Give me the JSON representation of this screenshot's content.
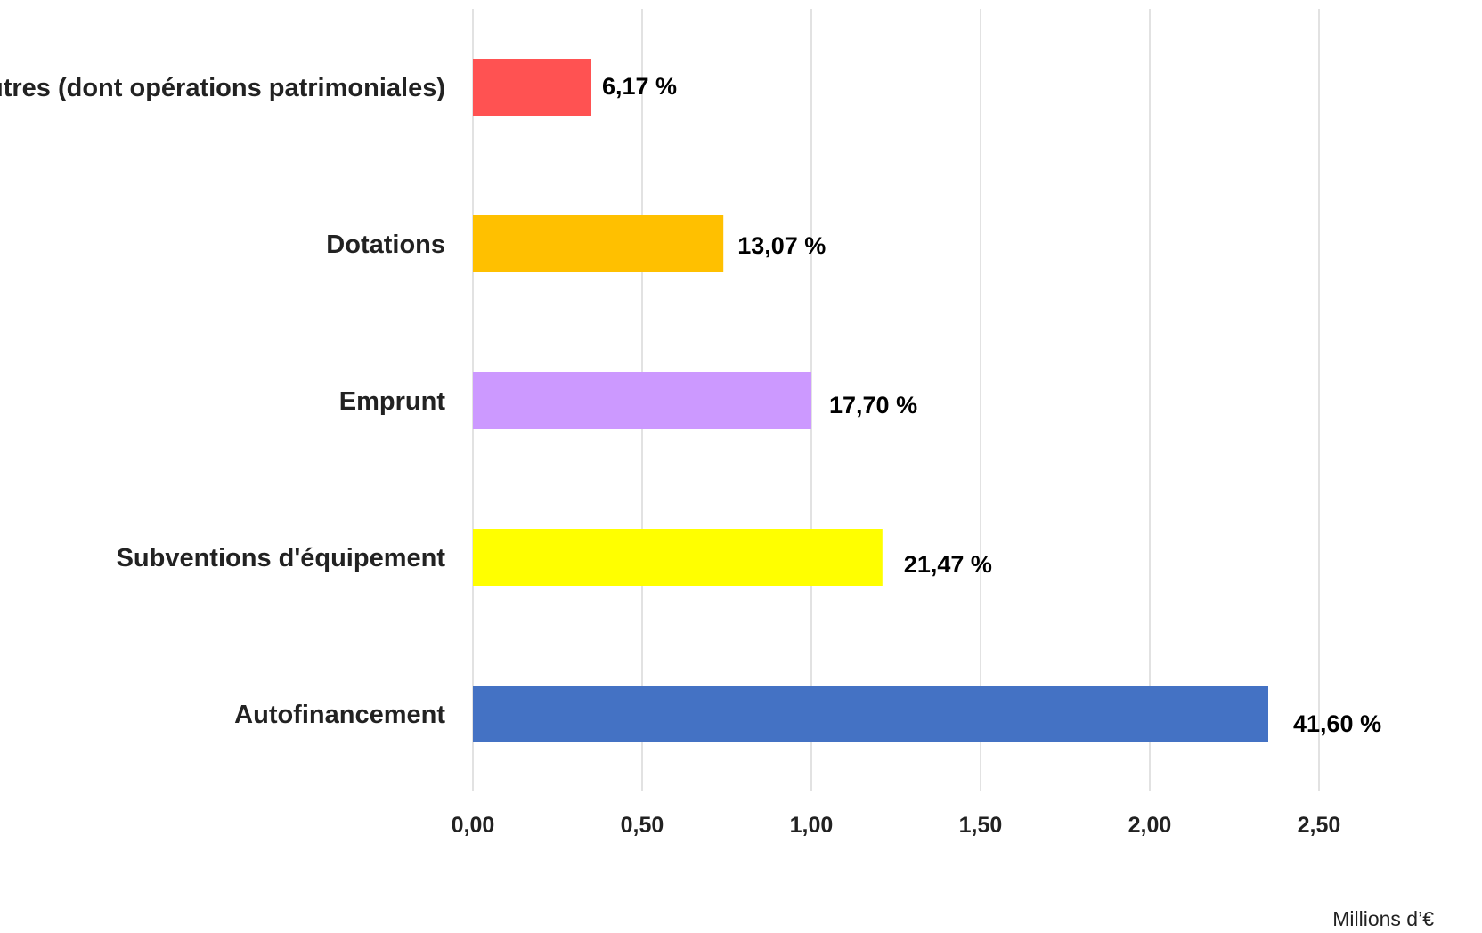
{
  "chart_data": {
    "type": "bar",
    "orientation": "horizontal",
    "categories": [
      "Autres (dont opérations patrimoniales)",
      "Dotations",
      "Emprunt",
      "Subventions d'équipement",
      "Autofinancement"
    ],
    "values": [
      0.35,
      0.74,
      1.0,
      1.21,
      2.35
    ],
    "data_labels": [
      "6,17 %",
      "13,07 %",
      "17,70 %",
      "21,47 %",
      "41,60 %"
    ],
    "colors": [
      "#ff5252",
      "#ffc000",
      "#cc99ff",
      "#ffff00",
      "#4472c4"
    ],
    "xlim": [
      0,
      2.5
    ],
    "xticks": [
      0,
      0.5,
      1.0,
      1.5,
      2.0,
      2.5
    ],
    "xtick_labels": [
      "0,00",
      "0,50",
      "1,00",
      "1,50",
      "2,00",
      "2,50"
    ],
    "unit_label": "Millions d’€",
    "grid": true,
    "gridline_color": "#d9d9d9",
    "legend": "none"
  }
}
